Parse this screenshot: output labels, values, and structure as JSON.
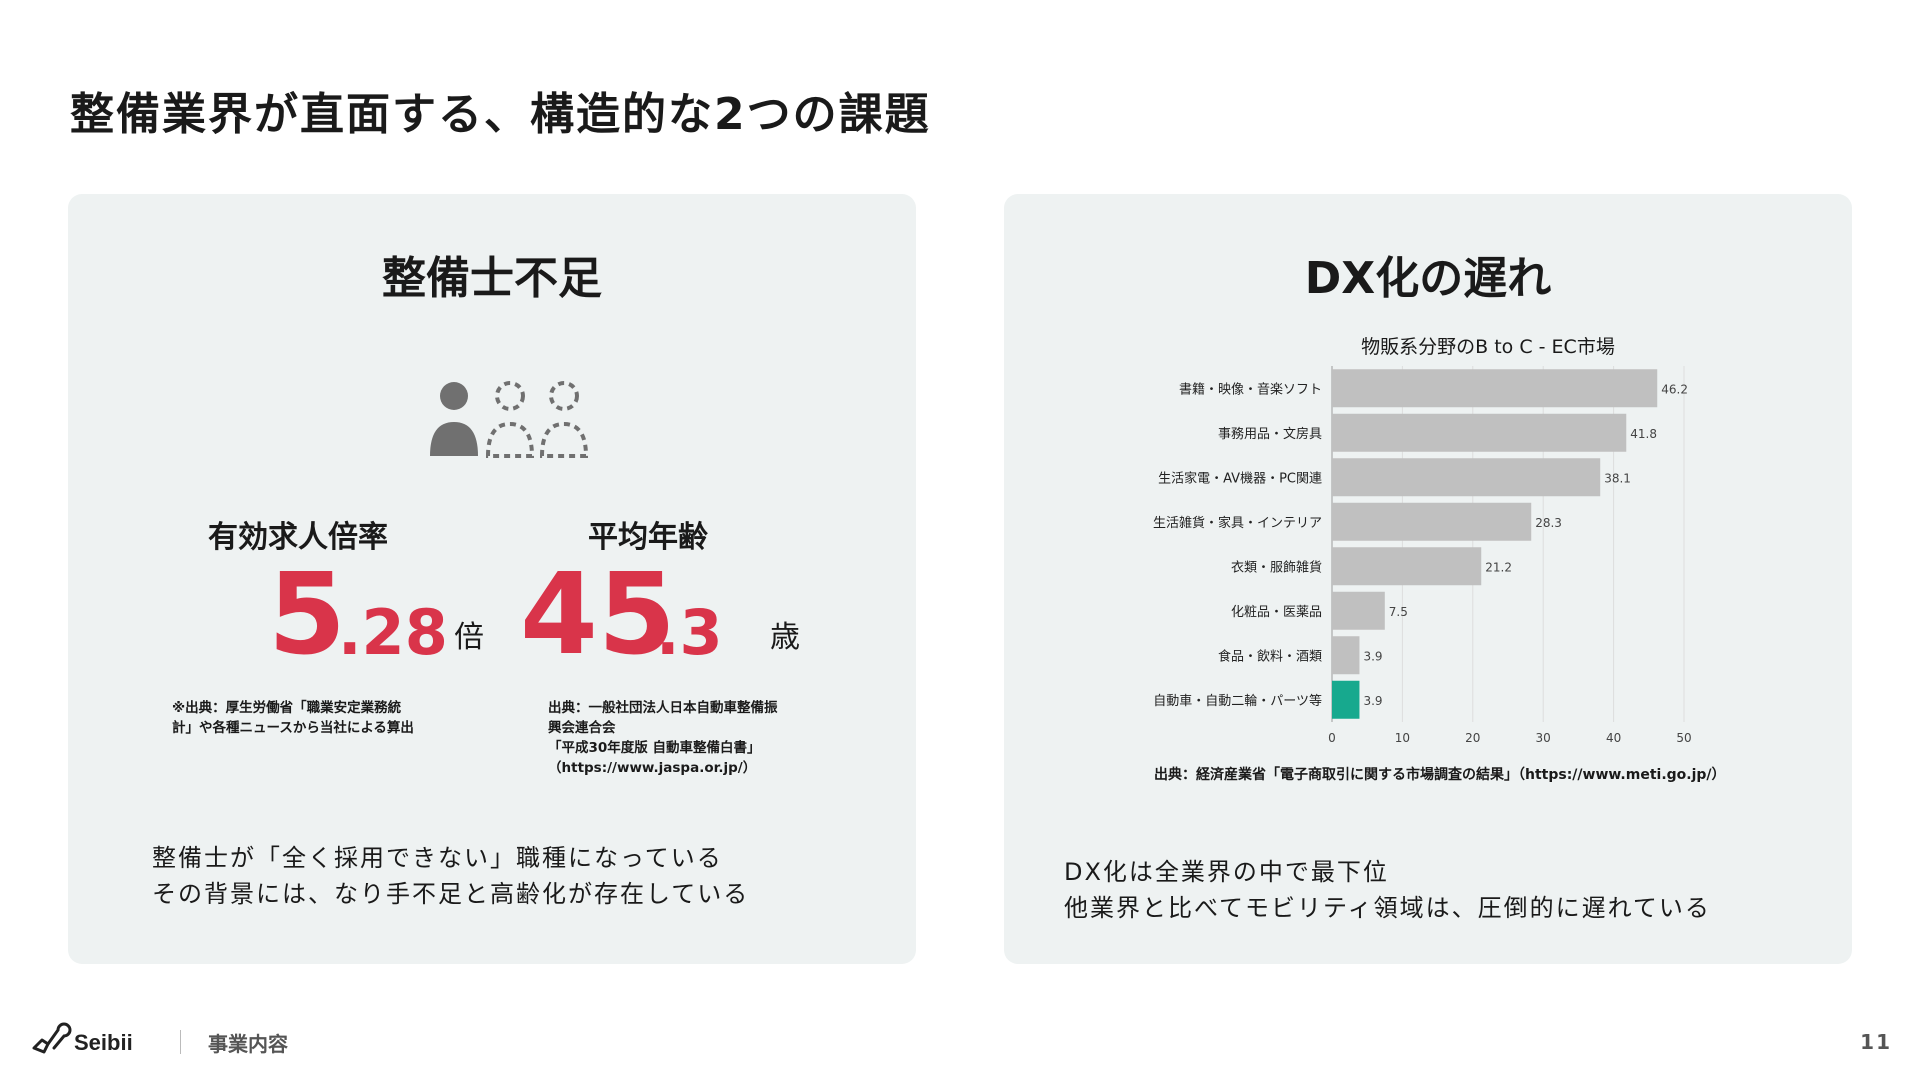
{
  "slide": {
    "title": "整備業界が直面する、構造的な2つの課題"
  },
  "left_panel": {
    "heading": "整備士不足",
    "stats": [
      {
        "label": "有効求人倍率",
        "value_int": "5",
        "value_dec": ".28",
        "unit": "倍",
        "source_lines": [
          "※出典：厚生労働省「職業安定業務統",
          "計」や各種ニュースから当社による算出"
        ]
      },
      {
        "label": "平均年齢",
        "value_int": "45",
        "value_dec": ".3",
        "unit": "歳",
        "source_lines": [
          "出典：一般社団法人日本自動車整備振",
          "興会連合会",
          "「平成30年度版 自動車整備白書」",
          "（https://www.jaspa.or.jp/）"
        ]
      }
    ],
    "description": [
      "整備士が「全く採用できない」職種になっている",
      "その背景には、なり手不足と高齢化が存在している"
    ]
  },
  "right_panel": {
    "heading": "DX化の遅れ",
    "chart_source": "出典：経済産業省「電子商取引に関する市場調査の結果」（https://www.meti.go.jp/）",
    "description": [
      "DX化は全業界の中で最下位",
      "他業界と比べてモビリティ領域は、圧倒的に遅れている"
    ]
  },
  "chart_data": {
    "type": "bar",
    "orientation": "horizontal",
    "title": "物販系分野のB to C - EC市場",
    "categories": [
      "書籍・映像・音楽ソフト",
      "事務用品・文房具",
      "生活家電・AV機器・PC関連",
      "生活雑貨・家具・インテリア",
      "衣類・服飾雑貨",
      "化粧品・医薬品",
      "食品・飲料・酒類",
      "自動車・自動二輪・パーツ等"
    ],
    "values": [
      46.2,
      41.8,
      38.1,
      28.3,
      21.2,
      7.5,
      3.9,
      3.9
    ],
    "value_labels": [
      "46.2",
      "41.8",
      "38.1",
      "28.3",
      "21.2",
      "7.5",
      "3.9",
      "3.9"
    ],
    "xlim": [
      0,
      50
    ],
    "xticks": [
      "0",
      "10",
      "20",
      "30",
      "40",
      "50"
    ],
    "grid": true,
    "colors": {
      "default": "#c0c0c0",
      "highlight": "#17a98e"
    },
    "highlight_index": 7
  },
  "footer": {
    "logo_text": "Seibii",
    "section": "事業内容",
    "page_number": "11"
  },
  "colors": {
    "accent": "#d9344a",
    "panel_bg": "#eef2f2",
    "highlight": "#17a98e"
  }
}
